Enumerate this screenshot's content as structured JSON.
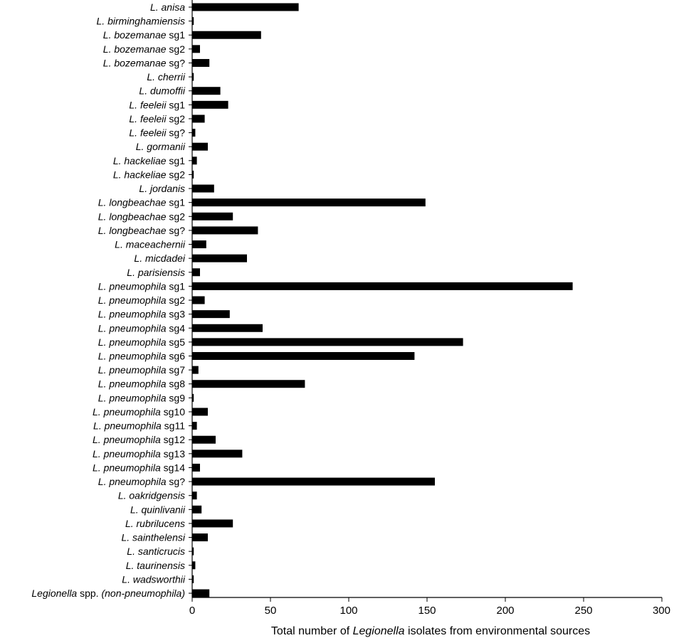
{
  "chart_data": {
    "type": "bar",
    "orientation": "horizontal",
    "categories": [
      {
        "italic": "L. anisa",
        "plain": ""
      },
      {
        "italic": "L. birminghamiensis",
        "plain": ""
      },
      {
        "italic": "L. bozemanae",
        "plain": " sg1"
      },
      {
        "italic": "L. bozemanae",
        "plain": " sg2"
      },
      {
        "italic": "L. bozemanae",
        "plain": " sg?"
      },
      {
        "italic": "L. cherrii",
        "plain": ""
      },
      {
        "italic": "L. dumoffii",
        "plain": ""
      },
      {
        "italic": "L. feeleii",
        "plain": " sg1"
      },
      {
        "italic": "L. feeleii",
        "plain": " sg2"
      },
      {
        "italic": "L. feeleii",
        "plain": " sg?"
      },
      {
        "italic": "L. gormanii",
        "plain": ""
      },
      {
        "italic": "L. hackeliae",
        "plain": " sg1"
      },
      {
        "italic": "L. hackeliae",
        "plain": " sg2"
      },
      {
        "italic": "L. jordanis",
        "plain": ""
      },
      {
        "italic": "L. longbeachae",
        "plain": " sg1"
      },
      {
        "italic": "L. longbeachae",
        "plain": " sg2"
      },
      {
        "italic": "L. longbeachae",
        "plain": " sg?"
      },
      {
        "italic": "L. maceachernii",
        "plain": ""
      },
      {
        "italic": "L. micdadei",
        "plain": ""
      },
      {
        "italic": "L. parisiensis",
        "plain": ""
      },
      {
        "italic": "L. pneumophila",
        "plain": " sg1"
      },
      {
        "italic": "L. pneumophila",
        "plain": " sg2"
      },
      {
        "italic": "L. pneumophila",
        "plain": " sg3"
      },
      {
        "italic": "L. pneumophila",
        "plain": " sg4"
      },
      {
        "italic": "L. pneumophila",
        "plain": " sg5"
      },
      {
        "italic": "L. pneumophila",
        "plain": " sg6"
      },
      {
        "italic": "L. pneumophila",
        "plain": " sg7"
      },
      {
        "italic": "L. pneumophila",
        "plain": " sg8"
      },
      {
        "italic": "L. pneumophila",
        "plain": " sg9"
      },
      {
        "italic": "L. pneumophila",
        "plain": " sg10"
      },
      {
        "italic": "L. pneumophila",
        "plain": " sg11"
      },
      {
        "italic": "L. pneumophila",
        "plain": " sg12"
      },
      {
        "italic": "L. pneumophila",
        "plain": " sg13"
      },
      {
        "italic": "L. pneumophila",
        "plain": " sg14"
      },
      {
        "italic": "L. pneumophila",
        "plain": " sg?"
      },
      {
        "italic": "L. oakridgensis",
        "plain": ""
      },
      {
        "italic": "L. quinlivanii",
        "plain": ""
      },
      {
        "italic": "L. rubrilucens",
        "plain": ""
      },
      {
        "italic": "L. sainthelensi",
        "plain": ""
      },
      {
        "italic": "L. santicrucis",
        "plain": ""
      },
      {
        "italic": "L. taurinensis",
        "plain": ""
      },
      {
        "italic": "L. wadsworthii",
        "plain": ""
      },
      {
        "prefix": "Legionella",
        "plain": " spp. ",
        "italic": "(non-pneumophila)"
      }
    ],
    "values": [
      68,
      1,
      44,
      5,
      11,
      1,
      18,
      23,
      8,
      2,
      10,
      3,
      1,
      14,
      149,
      26,
      42,
      9,
      35,
      5,
      243,
      8,
      24,
      45,
      173,
      142,
      4,
      72,
      1,
      10,
      3,
      15,
      32,
      5,
      155,
      3,
      6,
      26,
      10,
      1,
      2,
      1,
      11
    ],
    "xlim": [
      0,
      300
    ],
    "xticks": [
      "0",
      "50",
      "100",
      "150",
      "200",
      "250",
      "300"
    ],
    "xlabel": {
      "before": "Total number of ",
      "italic": "Legionella",
      "after": " isolates from environmental sources"
    },
    "bar_color": "#000000",
    "grid": false
  }
}
